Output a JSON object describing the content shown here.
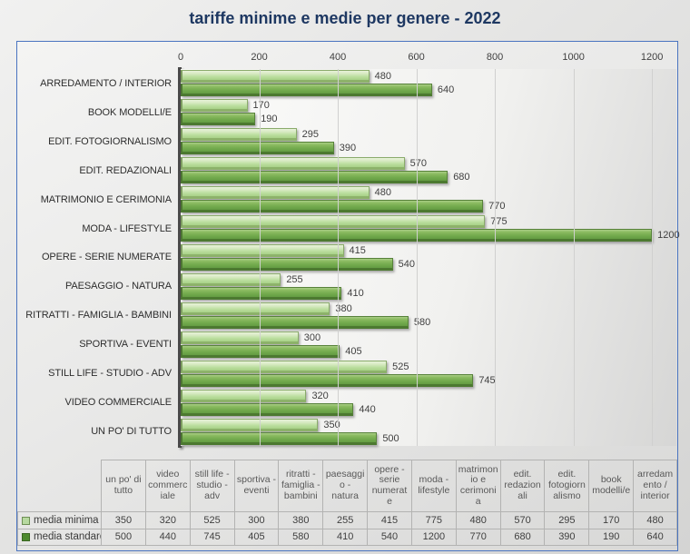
{
  "title": "tariffe minime e medie per genere - 2022",
  "chart_data": {
    "type": "bar",
    "orientation": "horizontal",
    "title": "tariffe minime e medie per genere - 2022",
    "xlabel": "",
    "ylabel": "",
    "grid": true,
    "legend_position": "bottom-table",
    "x_ticks": [
      0,
      200,
      400,
      600,
      800,
      1000,
      1200
    ],
    "xlim": [
      0,
      1262
    ],
    "categories": [
      "ARREDAMENTO / INTERIOR",
      "BOOK MODELLI/E",
      "EDIT. FOTOGIORNALISMO",
      "EDIT. REDAZIONALI",
      "MATRIMONIO E CERIMONIA",
      "MODA - LIFESTYLE",
      "OPERE - SERIE NUMERATE",
      "PAESAGGIO - NATURA",
      "RITRATTI - FAMIGLIA - BAMBINI",
      "SPORTIVA - EVENTI",
      "STILL LIFE - STUDIO - ADV",
      "VIDEO COMMERCIALE",
      "UN PO' DI TUTTO"
    ],
    "series": [
      {
        "name": "media minima",
        "values": [
          480,
          170,
          295,
          570,
          480,
          775,
          415,
          255,
          380,
          300,
          525,
          320,
          350
        ]
      },
      {
        "name": "media standard",
        "values": [
          640,
          190,
          390,
          680,
          770,
          1200,
          540,
          410,
          580,
          405,
          745,
          440,
          500
        ]
      }
    ]
  },
  "table": {
    "columns": [
      "un po' di tutto",
      "video commerciale",
      "still life - studio - adv",
      "sportiva - eventi",
      "ritratti - famiglia - bambini",
      "paesaggio - natura",
      "opere - serie numerate",
      "moda - lifestyle",
      "matrimonio e cerimonia",
      "edit. redazionali",
      "edit. fotogiornalismo",
      "book modelli/e",
      "arredamento / interior"
    ],
    "rows": [
      {
        "label": "media minima",
        "values": [
          350,
          320,
          525,
          300,
          380,
          255,
          415,
          775,
          480,
          570,
          295,
          170,
          480
        ]
      },
      {
        "label": "media standard",
        "values": [
          500,
          440,
          745,
          405,
          580,
          410,
          540,
          1200,
          770,
          680,
          390,
          190,
          640
        ]
      }
    ]
  },
  "colors": {
    "title_text": "#1e3862",
    "frame_border": "#4a74c0",
    "series_minima": "#a9d08e",
    "series_standard": "#70ad47",
    "axis_line": "#4a4a4a",
    "gridline": "#d0d0cf"
  }
}
